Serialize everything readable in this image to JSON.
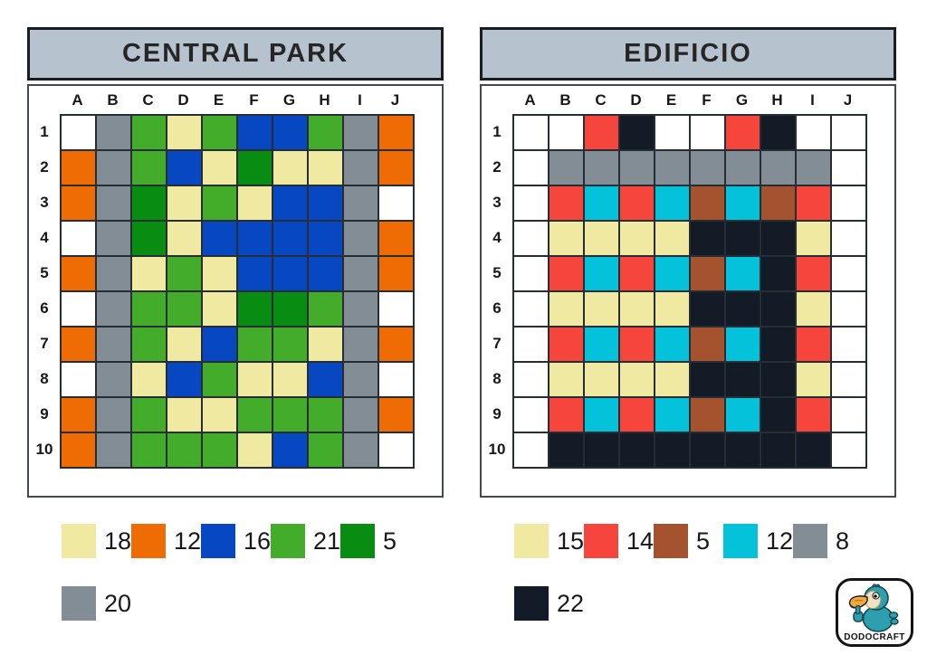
{
  "palette": {
    "white": "#ffffff",
    "gray": "#828d96",
    "green": "#43ad2b",
    "cream": "#efe9a1",
    "blue": "#0847c2",
    "dark_green": "#098c12",
    "orange": "#ef6c04",
    "red": "#f6453c",
    "black": "#131c26",
    "cyan": "#04c2da",
    "brown": "#a4532e",
    "titlebar": "#b6c2ce"
  },
  "key_map": {
    "w": "white",
    "s": "gray",
    "g": "green",
    "c": "cream",
    "b": "blue",
    "d": "dark_green",
    "o": "orange",
    "r": "red",
    "k": "black",
    "t": "cyan",
    "n": "brown"
  },
  "panels": [
    {
      "title": "CENTRAL PARK",
      "col_labels": [
        "A",
        "B",
        "C",
        "D",
        "E",
        "F",
        "G",
        "H",
        "I",
        "J"
      ],
      "row_labels": [
        "1",
        "2",
        "3",
        "4",
        "5",
        "6",
        "7",
        "8",
        "9",
        "10"
      ],
      "cells": [
        "wsgcgbbgso",
        "osgbcdccso",
        "osdcgcbbsw",
        "wsdcbbbbso",
        "oscgcbbbso",
        "wsggcddgsw",
        "osgcbggcso",
        "wscbgccbsw",
        "osgccgggso",
        "osgggcbgsw"
      ],
      "legend": [
        {
          "color": "cream",
          "count": "18"
        },
        {
          "color": "orange",
          "count": "12"
        },
        {
          "color": "blue",
          "count": "16"
        },
        {
          "color": "green",
          "count": "21"
        },
        {
          "color": "dark_green",
          "count": "5"
        },
        {
          "color": "gray",
          "count": "20"
        }
      ]
    },
    {
      "title": "EDIFICIO",
      "col_labels": [
        "A",
        "B",
        "C",
        "D",
        "E",
        "F",
        "G",
        "H",
        "I",
        "J"
      ],
      "row_labels": [
        "1",
        "2",
        "3",
        "4",
        "5",
        "6",
        "7",
        "8",
        "9",
        "10"
      ],
      "cells": [
        "wwrkwwrkww",
        "wssssssssw",
        "wrtrtntnrw",
        "wcccckkkcw",
        "wrtrtntkrw",
        "wcccckkkcw",
        "wrtrtntkrw",
        "wcccckkkcw",
        "wrtrtntkrw",
        "wkkkkkkkkw"
      ],
      "legend": [
        {
          "color": "cream",
          "count": "15"
        },
        {
          "color": "red",
          "count": "14"
        },
        {
          "color": "brown",
          "count": "5"
        },
        {
          "color": "cyan",
          "count": "12"
        },
        {
          "color": "gray",
          "count": "8"
        },
        {
          "color": "black",
          "count": "22"
        }
      ]
    }
  ],
  "logo": {
    "text": "DODOCRAFT",
    "bird_body_color": "#2e9fae",
    "bird_face_color": "#f2e2c4",
    "beak_color": "#f2a93b"
  }
}
